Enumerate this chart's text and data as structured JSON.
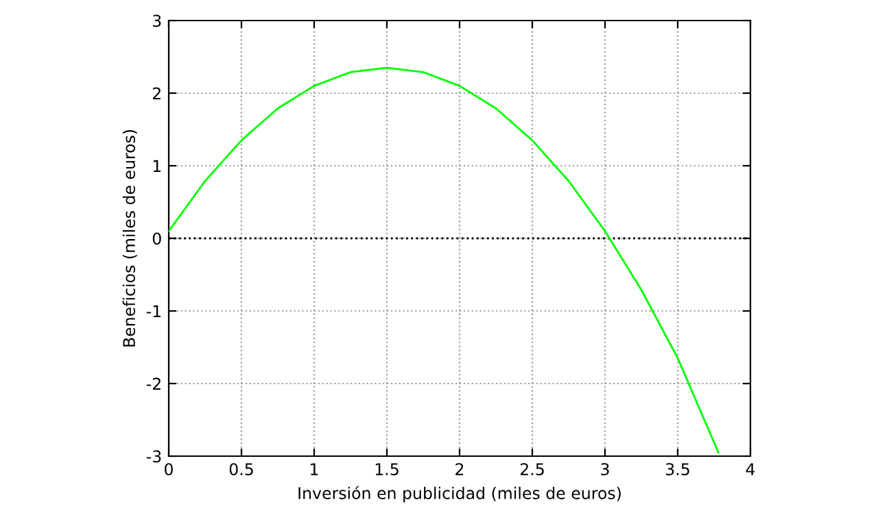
{
  "chart_data": {
    "type": "line",
    "xlabel": "Inversión en publicidad (miles de euros)",
    "ylabel": "Beneficios (miles de euros)",
    "x": [
      0,
      0.25,
      0.5,
      0.75,
      1,
      1.25,
      1.5,
      1.75,
      2,
      2.25,
      2.5,
      2.75,
      3,
      3.25,
      3.5,
      3.78
    ],
    "series": [
      {
        "color": "#00ff00",
        "values": [
          0.1,
          0.79,
          1.35,
          1.79,
          2.1,
          2.29,
          2.35,
          2.29,
          2.1,
          1.79,
          1.35,
          0.79,
          0.1,
          -0.71,
          -1.65,
          -2.95
        ]
      }
    ],
    "xlim": [
      0,
      4
    ],
    "ylim": [
      -3,
      3
    ],
    "xticks": [
      0,
      0.5,
      1,
      1.5,
      2,
      2.5,
      3,
      3.5,
      4
    ],
    "yticks": [
      -3,
      -2,
      -1,
      0,
      1,
      2,
      3
    ],
    "ref_lines": [
      {
        "axis": "y",
        "value": 0,
        "color": "#000000",
        "line_style": "dotted"
      }
    ],
    "grid": true,
    "legend": false,
    "marker": "none",
    "line_style": "solid"
  }
}
